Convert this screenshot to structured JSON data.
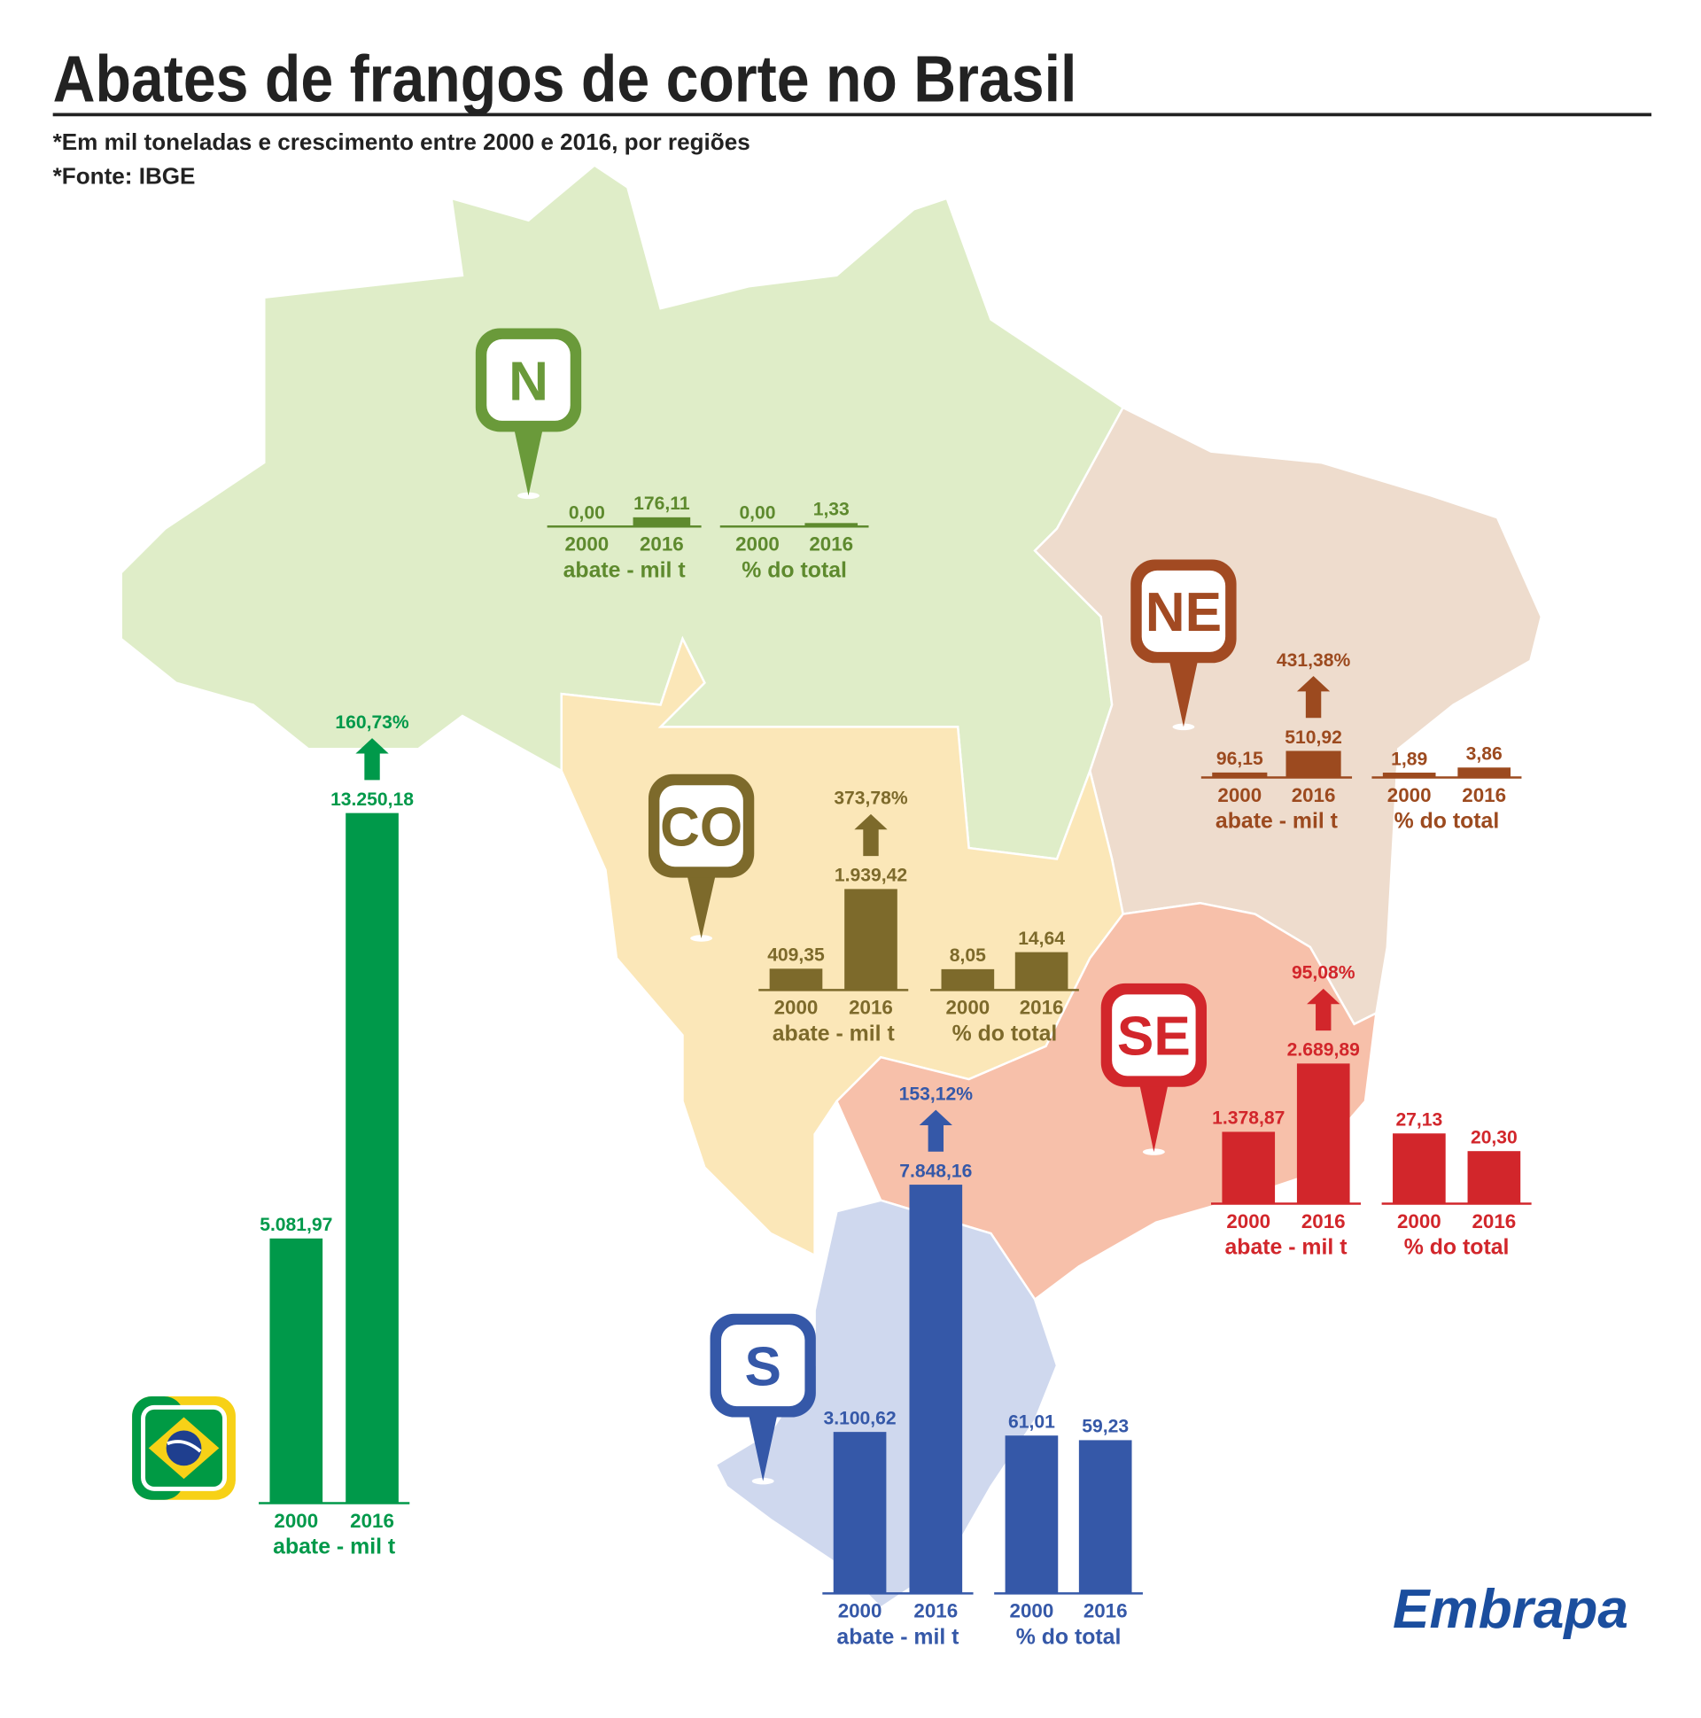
{
  "title": "Abates de frangos de corte no Brasil",
  "notes": [
    "*Em mil toneladas e crescimento entre 2000 e 2016, por regiões",
    "*Fonte: IBGE"
  ],
  "markers": [
    "N",
    "NE",
    "CO",
    "SE",
    "S"
  ],
  "logo": "Embrapa",
  "chart_data": [
    {
      "type": "bar",
      "categories": [
        "2000",
        "2016"
      ],
      "values": [
        5081.97,
        13250.18
      ],
      "value_labels": [
        "5.081,97",
        "13.250,18"
      ],
      "x_label": "abate - mil t",
      "annotation": "160,73%",
      "color": "#00994a"
    },
    {
      "type": "bar",
      "categories": [
        "2000",
        "2016"
      ],
      "values": [
        0.0,
        176.11
      ],
      "value_labels": [
        "0,00",
        "176,11"
      ],
      "x_label": "abate - mil t",
      "color": "#5e8a2e"
    },
    {
      "type": "bar",
      "categories": [
        "2000",
        "2016"
      ],
      "values": [
        0.0,
        1.33
      ],
      "value_labels": [
        "0,00",
        "1,33"
      ],
      "x_label": "% do total",
      "color": "#5e8a2e"
    },
    {
      "type": "bar",
      "categories": [
        "2000",
        "2016"
      ],
      "values": [
        96.15,
        510.92
      ],
      "value_labels": [
        "96,15",
        "510,92"
      ],
      "x_label": "abate - mil t",
      "annotation": "431,38%",
      "color": "#9c4a1f"
    },
    {
      "type": "bar",
      "categories": [
        "2000",
        "2016"
      ],
      "values": [
        1.89,
        3.86
      ],
      "value_labels": [
        "1,89",
        "3,86"
      ],
      "x_label": "% do total",
      "color": "#9c4a1f"
    },
    {
      "type": "bar",
      "categories": [
        "2000",
        "2016"
      ],
      "values": [
        409.35,
        1939.42
      ],
      "value_labels": [
        "409,35",
        "1.939,42"
      ],
      "x_label": "abate - mil t",
      "annotation": "373,78%",
      "color": "#7d6a2b"
    },
    {
      "type": "bar",
      "categories": [
        "2000",
        "2016"
      ],
      "values": [
        8.05,
        14.64
      ],
      "value_labels": [
        "8,05",
        "14,64"
      ],
      "x_label": "% do total",
      "color": "#7d6a2b"
    },
    {
      "type": "bar",
      "categories": [
        "2000",
        "2016"
      ],
      "values": [
        1378.87,
        2689.89
      ],
      "value_labels": [
        "1.378,87",
        "2.689,89"
      ],
      "x_label": "abate - mil t",
      "annotation": "95,08%",
      "color": "#d2262b"
    },
    {
      "type": "bar",
      "categories": [
        "2000",
        "2016"
      ],
      "values": [
        27.13,
        20.3
      ],
      "value_labels": [
        "27,13",
        "20,30"
      ],
      "x_label": "% do total",
      "color": "#d2262b"
    },
    {
      "type": "bar",
      "categories": [
        "2000",
        "2016"
      ],
      "values": [
        3100.62,
        7848.16
      ],
      "value_labels": [
        "3.100,62",
        "7.848,16"
      ],
      "x_label": "abate - mil t",
      "annotation": "153,12%",
      "color": "#3558a8"
    },
    {
      "type": "bar",
      "categories": [
        "2000",
        "2016"
      ],
      "values": [
        61.01,
        59.23
      ],
      "value_labels": [
        "61,01",
        "59,23"
      ],
      "x_label": "% do total",
      "color": "#3558a8"
    }
  ]
}
